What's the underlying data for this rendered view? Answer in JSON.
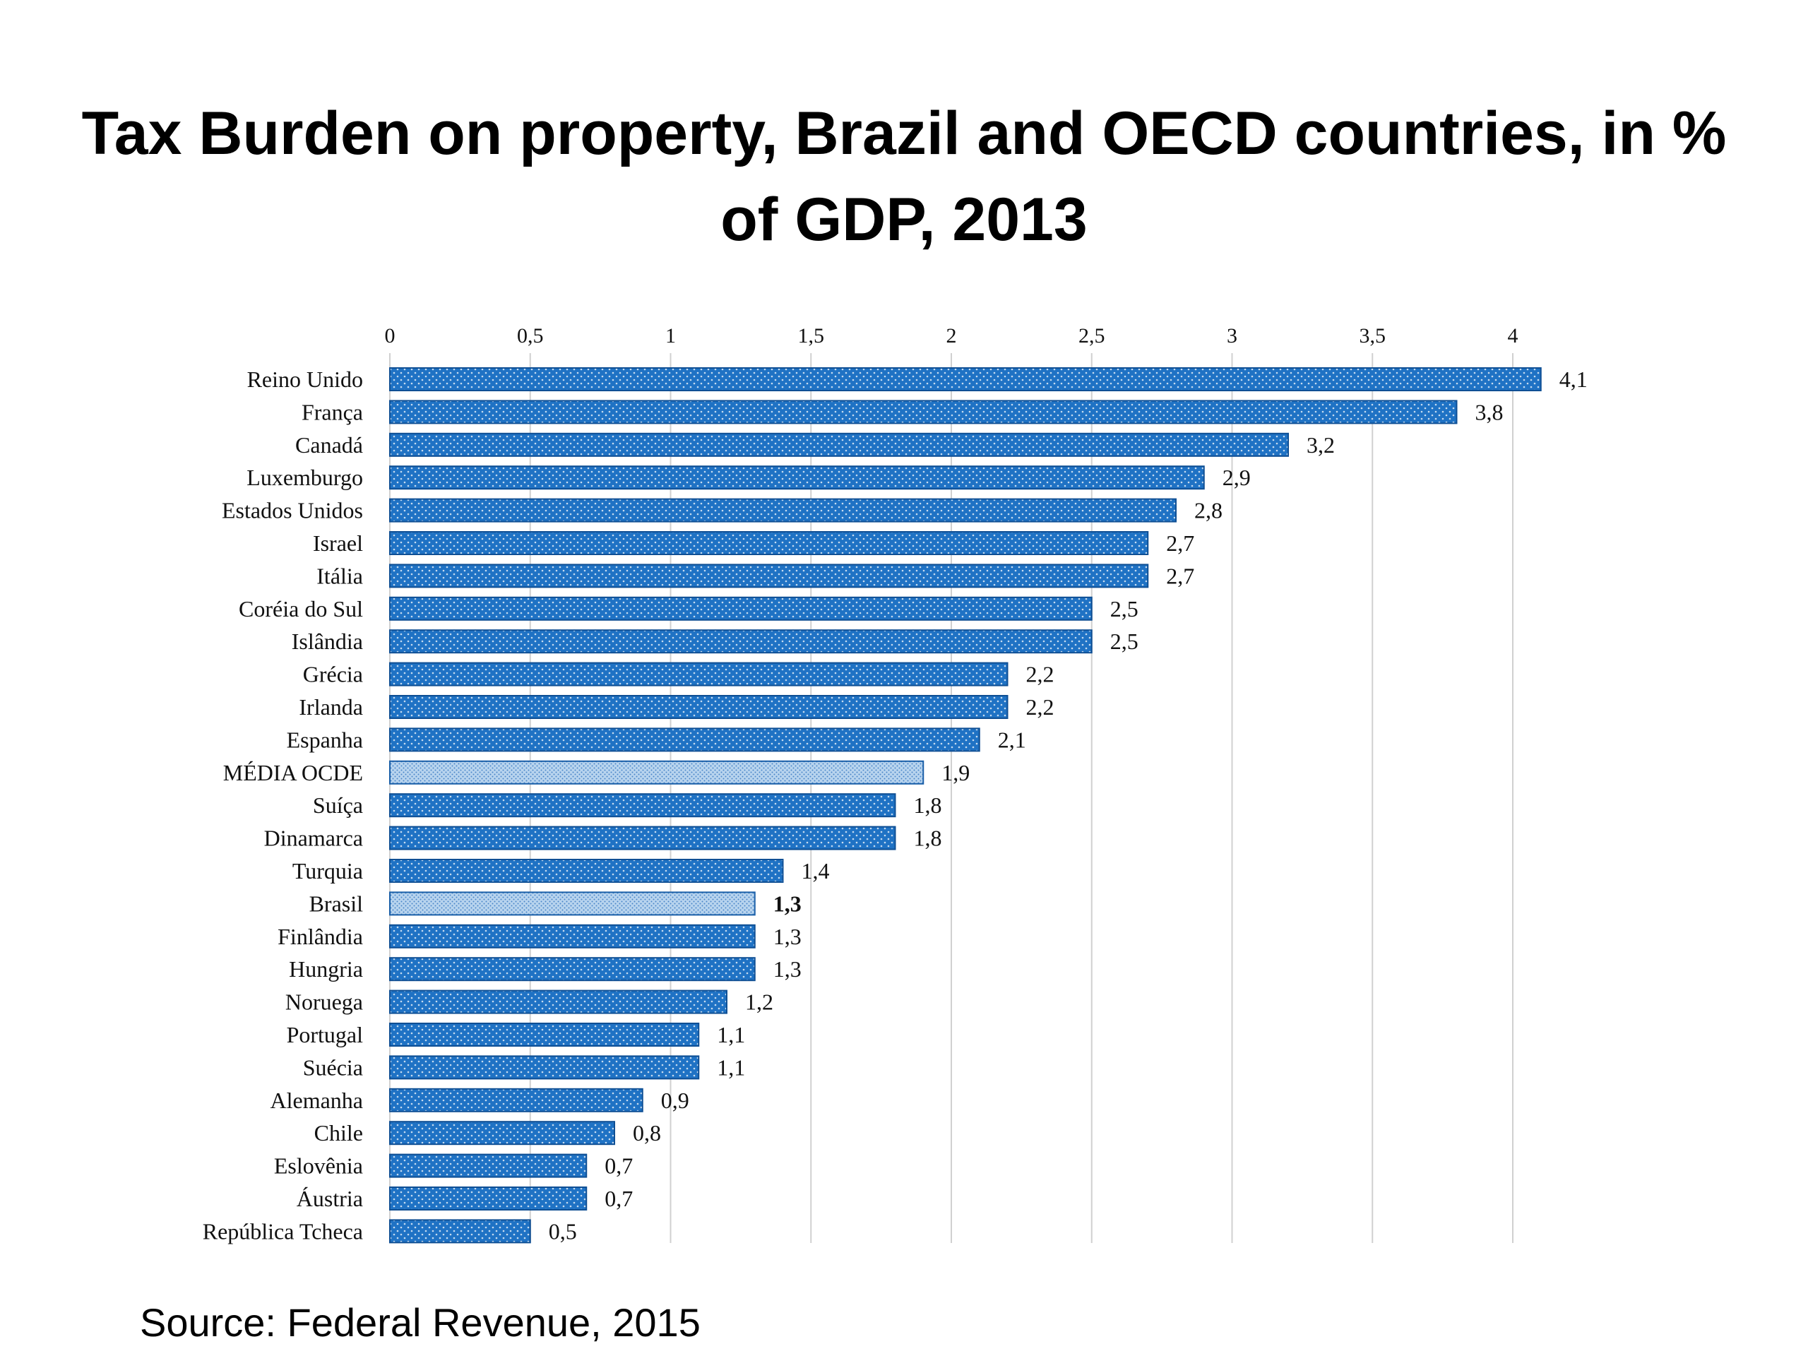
{
  "title_line1": "Tax Burden on property, Brazil and OECD countries, in %",
  "title_line2": "of GDP, 2013",
  "source": "Source: Federal Revenue, 2015",
  "colors": {
    "bar": "#1f72c4",
    "bar_dark": "#0f4f94",
    "highlight": "#b8d4ee",
    "grid": "#d0d0d0"
  },
  "chart_data": {
    "type": "bar",
    "orientation": "horizontal",
    "title": "Tax Burden on property, Brazil and OECD countries, in % of GDP, 2013",
    "xlabel": "",
    "ylabel": "",
    "xlim": [
      0,
      4.1
    ],
    "ticks": [
      0,
      0.5,
      1,
      1.5,
      2,
      2.5,
      3,
      3.5,
      4
    ],
    "tick_labels": [
      "0",
      "0,5",
      "1",
      "1,5",
      "2",
      "2,5",
      "3",
      "3,5",
      "4"
    ],
    "grid": true,
    "categories": [
      "Reino Unido",
      "França",
      "Canadá",
      "Luxemburgo",
      "Estados Unidos",
      "Israel",
      "Itália",
      "Coréia do Sul",
      "Islândia",
      "Grécia",
      "Irlanda",
      "Espanha",
      "MÉDIA OCDE",
      "Suíça",
      "Dinamarca",
      "Turquia",
      "Brasil",
      "Finlândia",
      "Hungria",
      "Noruega",
      "Portugal",
      "Suécia",
      "Alemanha",
      "Chile",
      "Eslovênia",
      "Áustria",
      "República Tcheca"
    ],
    "values": [
      4.1,
      3.8,
      3.2,
      2.9,
      2.8,
      2.7,
      2.7,
      2.5,
      2.5,
      2.2,
      2.2,
      2.1,
      1.9,
      1.8,
      1.8,
      1.4,
      1.3,
      1.3,
      1.3,
      1.2,
      1.1,
      1.1,
      0.9,
      0.8,
      0.7,
      0.7,
      0.5
    ],
    "value_labels": [
      "4,1",
      "3,8",
      "3,2",
      "2,9",
      "2,8",
      "2,7",
      "2,7",
      "2,5",
      "2,5",
      "2,2",
      "2,2",
      "2,1",
      "1,9",
      "1,8",
      "1,8",
      "1,4",
      "1,3",
      "1,3",
      "1,3",
      "1,2",
      "1,1",
      "1,1",
      "0,9",
      "0,8",
      "0,7",
      "0,7",
      "0,5"
    ],
    "highlighted": [
      "MÉDIA OCDE",
      "Brasil"
    ]
  }
}
